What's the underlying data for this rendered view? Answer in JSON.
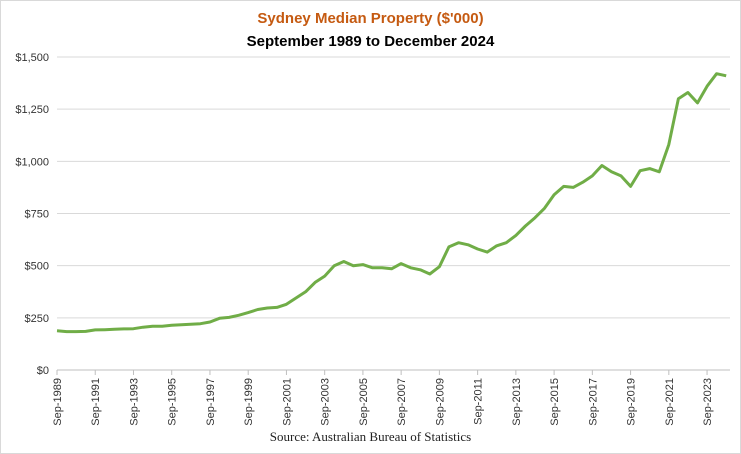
{
  "chart_data": {
    "type": "line",
    "title": "Sydney Median Property ($'000)",
    "subtitle": "September 1989 to December 2024",
    "source": "Source: Australian Bureau of Statistics",
    "ylim": [
      0,
      1500
    ],
    "ytick_values": [
      0,
      250,
      500,
      750,
      1000,
      1250,
      1500
    ],
    "ytick_labels": [
      "$0",
      "$250",
      "$500",
      "$750",
      "$1,000",
      "$1,250",
      "$1,500"
    ],
    "xtick_labels": [
      "Sep-1989",
      "Sep-1991",
      "Sep-1993",
      "Sep-1995",
      "Sep-1997",
      "Sep-1999",
      "Sep-2001",
      "Sep-2003",
      "Sep-2005",
      "Sep-2007",
      "Sep-2009",
      "Sep-2011",
      "Sep-2013",
      "Sep-2015",
      "Sep-2017",
      "Sep-2019",
      "Sep-2021",
      "Sep-2023"
    ],
    "grid": "horizontal",
    "colors": {
      "line": "#70ad47",
      "title": "#c55a11",
      "grid": "#d9d9d9"
    },
    "series": [
      {
        "x": [
          "1989.75",
          "1990.25",
          "1990.75",
          "1991.25",
          "1991.75",
          "1992.25",
          "1992.75",
          "1993.25",
          "1993.75",
          "1994.25",
          "1994.75",
          "1995.25",
          "1995.75",
          "1996.25",
          "1996.75",
          "1997.25",
          "1997.75",
          "1998.25",
          "1998.75",
          "1999.25",
          "1999.75",
          "2000.25",
          "2000.75",
          "2001.25",
          "2001.75",
          "2002.25",
          "2002.75",
          "2003.25",
          "2003.75",
          "2004.25",
          "2004.75",
          "2005.25",
          "2005.75",
          "2006.25",
          "2006.75",
          "2007.25",
          "2007.75",
          "2008.25",
          "2008.75",
          "2009.25",
          "2009.75",
          "2010.25",
          "2010.75",
          "2011.25",
          "2011.75",
          "2012.25",
          "2012.75",
          "2013.25",
          "2013.75",
          "2014.25",
          "2014.75",
          "2015.25",
          "2015.75",
          "2016.25",
          "2016.75",
          "2017.25",
          "2017.75",
          "2018.25",
          "2018.75",
          "2019.25",
          "2019.75",
          "2020.25",
          "2020.75",
          "2021.25",
          "2021.75",
          "2022.25",
          "2022.75",
          "2023.25",
          "2023.75",
          "2024.25",
          "2024.75"
        ],
        "values": [
          188,
          184,
          184,
          185,
          192,
          193,
          195,
          197,
          198,
          205,
          210,
          210,
          214,
          217,
          219,
          222,
          230,
          248,
          252,
          262,
          275,
          290,
          297,
          300,
          315,
          345,
          375,
          420,
          450,
          500,
          520,
          500,
          505,
          490,
          490,
          485,
          510,
          490,
          480,
          460,
          495,
          590,
          610,
          600,
          580,
          565,
          595,
          610,
          645,
          690,
          730,
          775,
          840,
          880,
          875,
          900,
          930,
          980,
          950,
          930,
          880,
          955,
          965,
          950,
          1080,
          1300,
          1330,
          1280,
          1360,
          1420,
          1410
        ]
      }
    ]
  }
}
